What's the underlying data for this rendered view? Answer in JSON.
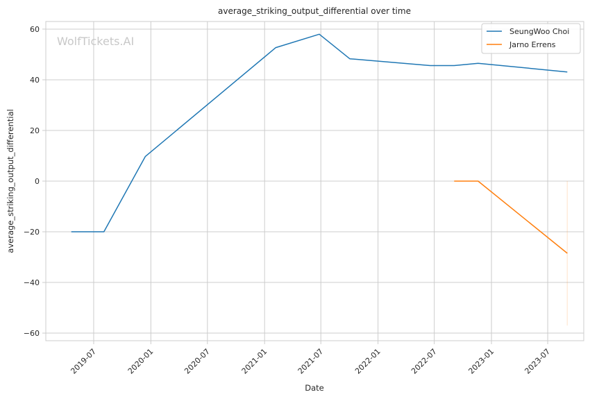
{
  "chart_data": {
    "type": "line",
    "title": "average_striking_output_differential over time",
    "xlabel": "Date",
    "ylabel": "average_striking_output_differential",
    "x_tick_labels": [
      "2019-07",
      "2020-01",
      "2020-07",
      "2021-01",
      "2021-07",
      "2022-01",
      "2022-07",
      "2023-01",
      "2023-07"
    ],
    "x_ticks": [
      "2019-07-01",
      "2020-01-01",
      "2020-07-01",
      "2021-01-01",
      "2021-07-01",
      "2022-01-01",
      "2022-07-01",
      "2023-01-01",
      "2023-07-01"
    ],
    "xlim": [
      "2019-01-28",
      "2023-10-25"
    ],
    "y_ticks": [
      -60,
      -40,
      -20,
      0,
      20,
      40,
      60
    ],
    "y_tick_labels": [
      "−60",
      "−40",
      "−20",
      "0",
      "20",
      "40",
      "60"
    ],
    "ylim": [
      -63,
      63
    ],
    "grid": true,
    "legend_position": "top-right",
    "watermark": "WolfTickets.AI",
    "series": [
      {
        "name": "SeungWoo Choi",
        "color": "#1f77b4",
        "points": [
          {
            "x": "2019-04-20",
            "y": -20
          },
          {
            "x": "2019-08-03",
            "y": -20
          },
          {
            "x": "2019-12-14",
            "y": 9.7
          },
          {
            "x": "2021-02-06",
            "y": 52.7
          },
          {
            "x": "2021-06-26",
            "y": 58
          },
          {
            "x": "2021-10-02",
            "y": 48.3
          },
          {
            "x": "2022-06-18",
            "y": 45.6
          },
          {
            "x": "2022-09-03",
            "y": 45.6
          },
          {
            "x": "2022-11-19",
            "y": 46.5
          },
          {
            "x": "2023-09-02",
            "y": 43.1
          }
        ]
      },
      {
        "name": "Jarno Errens",
        "color": "#ff7f0e",
        "points": [
          {
            "x": "2022-09-03",
            "y": 0
          },
          {
            "x": "2022-11-19",
            "y": 0
          },
          {
            "x": "2023-09-02",
            "y": -28.5
          }
        ],
        "band": {
          "x": "2023-09-02",
          "low": -57,
          "high": 0,
          "color": "#ff7f0e",
          "opacity": 0.15
        }
      }
    ]
  }
}
